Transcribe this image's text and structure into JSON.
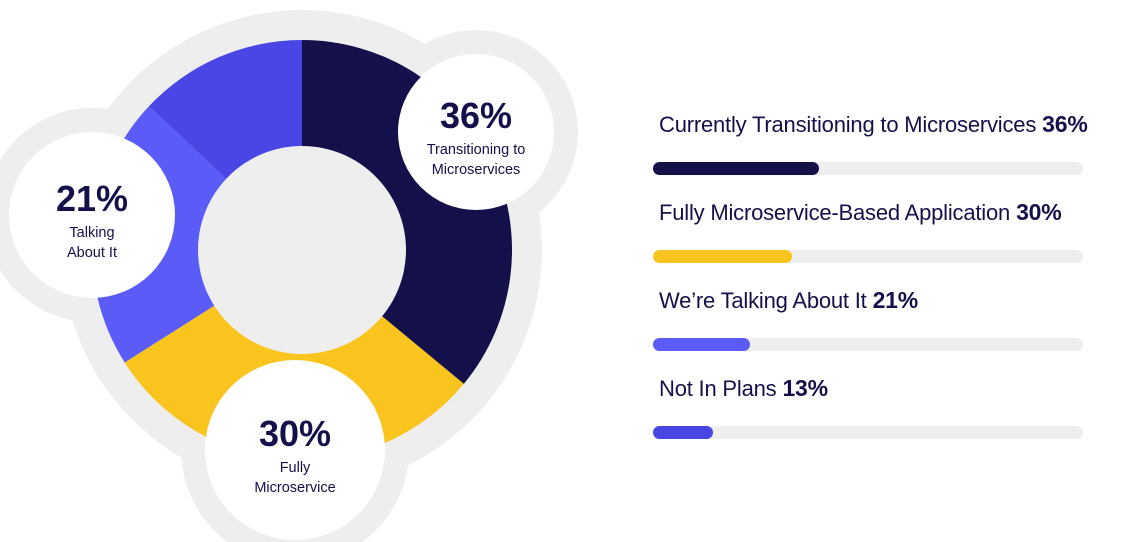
{
  "chart_data": {
    "type": "pie",
    "categories": [
      "Currently Transitioning to Microservices",
      "Fully Microservice-Based Application",
      "We’re Talking About It",
      "Not In Plans"
    ],
    "values": [
      36,
      30,
      21,
      13
    ],
    "unit": "%",
    "colors": [
      "#14104a",
      "#f8c41d",
      "#5b5bf7",
      "#4a46e6"
    ],
    "callouts": [
      {
        "pct": "36%",
        "lines": [
          "Transitioning to",
          "Microservices"
        ]
      },
      {
        "pct": "30%",
        "lines": [
          "Fully",
          "Microservice"
        ]
      },
      {
        "pct": "21%",
        "lines": [
          "Talking",
          "About It"
        ]
      }
    ]
  },
  "legend": {
    "items": [
      {
        "label": "Currently Transitioning to Microservices",
        "pct": "36%",
        "value": 36,
        "color": "#14104a"
      },
      {
        "label": "Fully Microservice-Based Application",
        "pct": "30%",
        "value": 30,
        "color": "#f8c41d"
      },
      {
        "label": "We’re Talking About It",
        "pct": "21%",
        "value": 21,
        "color": "#5b5bf7"
      },
      {
        "label": "Not In Plans",
        "pct": "13%",
        "value": 13,
        "color": "#4a46e6"
      }
    ],
    "track_color": "#eeeeee",
    "fill_scale_max": 93
  },
  "theme": {
    "halo_color": "#eeeeee",
    "bubble_color": "#ffffff",
    "text_color": "#14104a"
  }
}
